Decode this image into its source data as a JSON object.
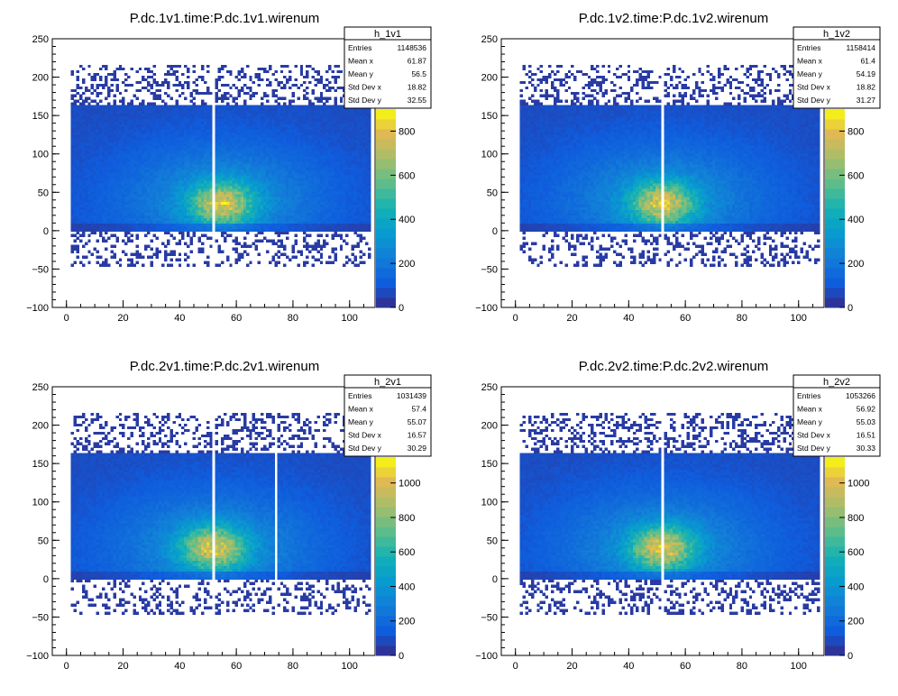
{
  "chart_data": [
    {
      "type": "heatmap",
      "title": "P.dc.1v1.time:P.dc.1v1.wirenum",
      "xlim": [
        -5,
        109
      ],
      "ylim": [
        -100,
        250
      ],
      "xticks": [
        "0",
        "20",
        "40",
        "60",
        "80",
        "100"
      ],
      "yticks": [
        "−100",
        "−50",
        "0",
        "50",
        "100",
        "150",
        "200",
        "250"
      ],
      "zticks": [
        "0",
        "200",
        "400",
        "600",
        "800"
      ],
      "zmax": 900,
      "wire_range": [
        2,
        107
      ],
      "main_band": [
        0,
        165
      ],
      "peak": {
        "x": 55,
        "y": 35,
        "z": 900
      },
      "empty_wires": [
        52
      ],
      "stats": {
        "name": "h_1v1",
        "rows": [
          {
            "label": "Entries",
            "value": "1148536"
          },
          {
            "label": "Mean x",
            "value": "61.87"
          },
          {
            "label": "Mean y",
            "value": "56.5"
          },
          {
            "label": "Std Dev x",
            "value": "18.82"
          },
          {
            "label": "Std Dev y",
            "value": "32.55"
          }
        ]
      }
    },
    {
      "type": "heatmap",
      "title": "P.dc.1v2.time:P.dc.1v2.wirenum",
      "xlim": [
        -5,
        109
      ],
      "ylim": [
        -100,
        250
      ],
      "xticks": [
        "0",
        "20",
        "40",
        "60",
        "80",
        "100"
      ],
      "yticks": [
        "−100",
        "−50",
        "0",
        "50",
        "100",
        "150",
        "200",
        "250"
      ],
      "zticks": [
        "0",
        "200",
        "400",
        "600",
        "800"
      ],
      "zmax": 900,
      "wire_range": [
        2,
        107
      ],
      "main_band": [
        0,
        165
      ],
      "peak": {
        "x": 52,
        "y": 35,
        "z": 900
      },
      "empty_wires": [
        52
      ],
      "stats": {
        "name": "h_1v2",
        "rows": [
          {
            "label": "Entries",
            "value": "1158414"
          },
          {
            "label": "Mean x",
            "value": "61.4"
          },
          {
            "label": "Mean y",
            "value": "54.19"
          },
          {
            "label": "Std Dev x",
            "value": "18.82"
          },
          {
            "label": "Std Dev y",
            "value": "31.27"
          }
        ]
      }
    },
    {
      "type": "heatmap",
      "title": "P.dc.2v1.time:P.dc.2v1.wirenum",
      "xlim": [
        -5,
        109
      ],
      "ylim": [
        -100,
        250
      ],
      "xticks": [
        "0",
        "20",
        "40",
        "60",
        "80",
        "100"
      ],
      "yticks": [
        "−100",
        "−50",
        "0",
        "50",
        "100",
        "150",
        "200",
        "250"
      ],
      "zticks": [
        "0",
        "200",
        "400",
        "600",
        "800",
        "1000"
      ],
      "zmax": 1150,
      "wire_range": [
        2,
        107
      ],
      "main_band": [
        0,
        165
      ],
      "peak": {
        "x": 52,
        "y": 40,
        "z": 1150
      },
      "empty_wires": [
        52,
        74
      ],
      "stats": {
        "name": "h_2v1",
        "rows": [
          {
            "label": "Entries",
            "value": "1031439"
          },
          {
            "label": "Mean x",
            "value": "57.4"
          },
          {
            "label": "Mean y",
            "value": "55.07"
          },
          {
            "label": "Std Dev x",
            "value": "16.57"
          },
          {
            "label": "Std Dev y",
            "value": "30.29"
          }
        ]
      }
    },
    {
      "type": "heatmap",
      "title": "P.dc.2v2.time:P.dc.2v2.wirenum",
      "xlim": [
        -5,
        109
      ],
      "ylim": [
        -100,
        250
      ],
      "xticks": [
        "0",
        "20",
        "40",
        "60",
        "80",
        "100"
      ],
      "yticks": [
        "−100",
        "−50",
        "0",
        "50",
        "100",
        "150",
        "200",
        "250"
      ],
      "zticks": [
        "0",
        "200",
        "400",
        "600",
        "800",
        "1000"
      ],
      "zmax": 1150,
      "wire_range": [
        2,
        107
      ],
      "main_band": [
        0,
        165
      ],
      "peak": {
        "x": 52,
        "y": 40,
        "z": 1150
      },
      "empty_wires": [
        52
      ],
      "stats": {
        "name": "h_2v2",
        "rows": [
          {
            "label": "Entries",
            "value": "1053266"
          },
          {
            "label": "Mean x",
            "value": "56.92"
          },
          {
            "label": "Mean y",
            "value": "55.03"
          },
          {
            "label": "Std Dev x",
            "value": "16.51"
          },
          {
            "label": "Std Dev y",
            "value": "30.33"
          }
        ]
      }
    }
  ]
}
